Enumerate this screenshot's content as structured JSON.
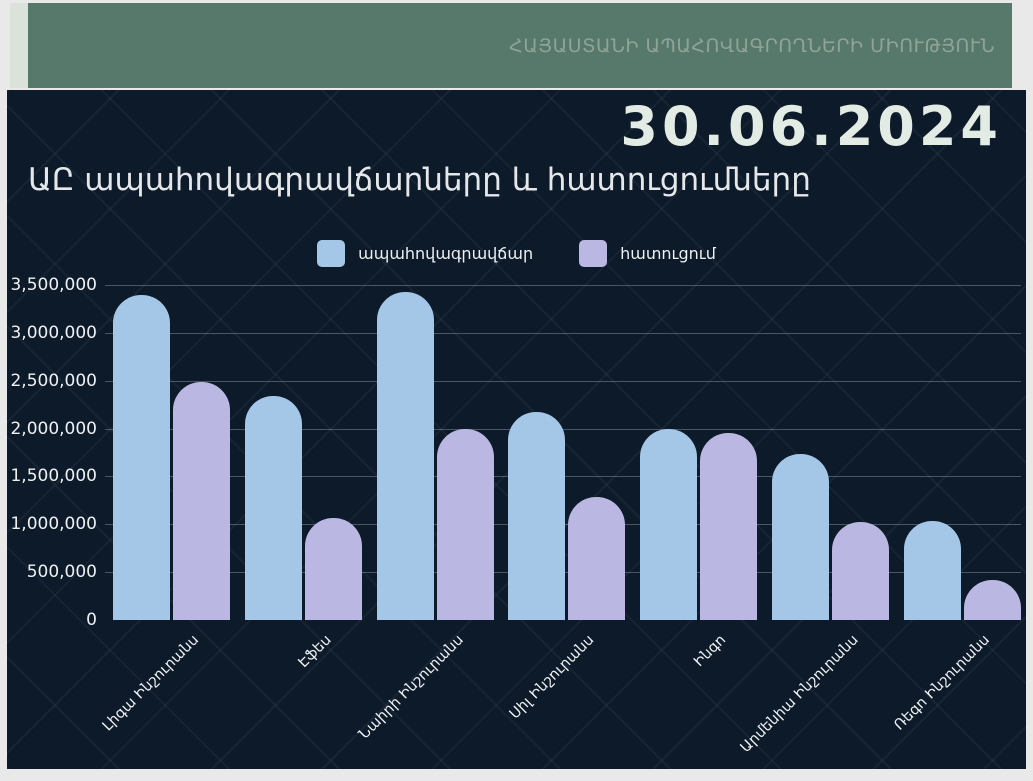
{
  "header": {
    "org_name": "ՀԱՅԱՍՏԱՆԻ ԱՊԱՀՈՎԱԳՐՈՂՆԵՐԻ ՄԻՈՒԹՅՈՒՆ"
  },
  "report": {
    "date": "30.06.2024"
  },
  "chart_data": {
    "type": "bar",
    "title": "ԱԸ ապահովագրավճարները և հատուցումները",
    "categories": [
      "Լիգա Ինշուրանս",
      "Էֆես",
      "Նաիրի Ինշուրանս",
      "Սիլ Ինշուրանս",
      "Ինգո",
      "Արմենիա Ինշուրանս",
      "Ռեգո Ինշուրանս"
    ],
    "series": [
      {
        "name": "ապահովագրավճար",
        "color": "#a4c7e8",
        "values": [
          3400000,
          2340000,
          3430000,
          2170000,
          2000000,
          1730000,
          1030000
        ]
      },
      {
        "name": "հատուցում",
        "color": "#bab8e2",
        "values": [
          2490000,
          1070000,
          2000000,
          1290000,
          1950000,
          1020000,
          420000
        ]
      }
    ],
    "ylim": [
      0,
      3500000
    ],
    "ytick_step": 500000,
    "ytick_labels": [
      "3,500,000",
      "3,000,000",
      "2,500,000",
      "2,000,000",
      "1,500,000",
      "1,000,000",
      "500,000",
      "0"
    ],
    "grid": true,
    "legend_position": "top-center",
    "bar_style": "rounded-top"
  },
  "colors": {
    "page_bg": "#e9e9ea",
    "accent_strip": "#dbe2d9",
    "banner_bg": "#56796c",
    "banner_text": "#8fa396",
    "panel_bg": "#0d1a29",
    "grid_line": "rgba(216,226,236,0.30)",
    "axis_text": "#eef1f3",
    "title_text": "#e4e8ea",
    "date_text": "#e3ece4"
  }
}
